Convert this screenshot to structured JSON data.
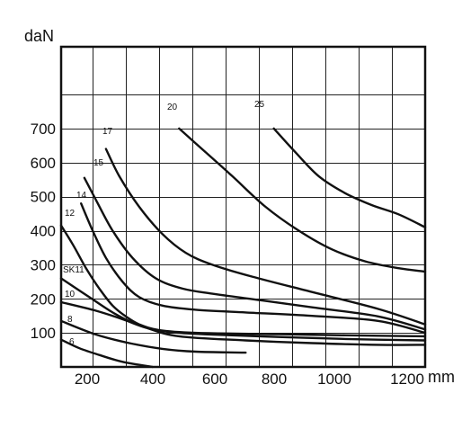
{
  "chart_data": {
    "type": "line",
    "ylabel": "daN",
    "xlabel": "mm",
    "xlim": [
      145,
      1240
    ],
    "ylim": [
      0,
      940
    ],
    "x_ticks": [
      {
        "value": 200,
        "label": "200"
      },
      {
        "value": 400,
        "label": "400"
      },
      {
        "value": 600,
        "label": "600"
      },
      {
        "value": 800,
        "label": "800"
      },
      {
        "value": 1000,
        "label": "1000"
      },
      {
        "value": 1200,
        "label": "1200"
      }
    ],
    "y_ticks": [
      {
        "value": 100,
        "label": "100"
      },
      {
        "value": 200,
        "label": "200"
      },
      {
        "value": 300,
        "label": "300"
      },
      {
        "value": 400,
        "label": "400"
      },
      {
        "value": 500,
        "label": "500"
      },
      {
        "value": 600,
        "label": "600"
      },
      {
        "value": 700,
        "label": "700"
      }
    ],
    "grid": true,
    "series": [
      {
        "name": "6",
        "points": [
          [
            145,
            80
          ],
          [
            200,
            55
          ],
          [
            260,
            35
          ],
          [
            330,
            15
          ],
          [
            420,
            0
          ]
        ]
      },
      {
        "name": "8",
        "points": [
          [
            145,
            135
          ],
          [
            250,
            95
          ],
          [
            350,
            70
          ],
          [
            450,
            53
          ],
          [
            550,
            45
          ],
          [
            700,
            42
          ]
        ]
      },
      {
        "name": "10",
        "points": [
          [
            145,
            190
          ],
          [
            250,
            165
          ],
          [
            330,
            140
          ],
          [
            400,
            115
          ],
          [
            500,
            90
          ],
          [
            700,
            78
          ],
          [
            900,
            70
          ],
          [
            1100,
            65
          ],
          [
            1240,
            65
          ]
        ]
      },
      {
        "name": "SK11",
        "points": [
          [
            145,
            260
          ],
          [
            230,
            205
          ],
          [
            300,
            160
          ],
          [
            360,
            130
          ],
          [
            420,
            110
          ],
          [
            500,
            100
          ],
          [
            600,
            95
          ],
          [
            800,
            88
          ],
          [
            1000,
            82
          ],
          [
            1240,
            78
          ]
        ]
      },
      {
        "name": "12",
        "points": [
          [
            145,
            415
          ],
          [
            180,
            360
          ],
          [
            220,
            290
          ],
          [
            260,
            230
          ],
          [
            300,
            180
          ],
          [
            340,
            148
          ],
          [
            380,
            125
          ],
          [
            440,
            108
          ],
          [
            550,
            100
          ],
          [
            800,
            96
          ],
          [
            1000,
            93
          ],
          [
            1240,
            90
          ]
        ]
      },
      {
        "name": "14",
        "points": [
          [
            205,
            480
          ],
          [
            240,
            400
          ],
          [
            280,
            320
          ],
          [
            330,
            250
          ],
          [
            380,
            205
          ],
          [
            450,
            180
          ],
          [
            550,
            168
          ],
          [
            700,
            160
          ],
          [
            900,
            150
          ],
          [
            1100,
            135
          ],
          [
            1240,
            100
          ]
        ]
      },
      {
        "name": "15",
        "points": [
          [
            215,
            555
          ],
          [
            250,
            490
          ],
          [
            300,
            400
          ],
          [
            360,
            320
          ],
          [
            430,
            260
          ],
          [
            510,
            230
          ],
          [
            600,
            215
          ],
          [
            750,
            195
          ],
          [
            900,
            175
          ],
          [
            1100,
            148
          ],
          [
            1240,
            110
          ]
        ]
      },
      {
        "name": "17",
        "points": [
          [
            280,
            640
          ],
          [
            320,
            560
          ],
          [
            380,
            470
          ],
          [
            450,
            390
          ],
          [
            520,
            335
          ],
          [
            600,
            300
          ],
          [
            720,
            265
          ],
          [
            900,
            220
          ],
          [
            1100,
            170
          ],
          [
            1240,
            125
          ]
        ]
      },
      {
        "name": "20",
        "points": [
          [
            500,
            700
          ],
          [
            580,
            630
          ],
          [
            660,
            560
          ],
          [
            760,
            470
          ],
          [
            860,
            400
          ],
          [
            960,
            345
          ],
          [
            1060,
            310
          ],
          [
            1160,
            290
          ],
          [
            1240,
            280
          ]
        ]
      },
      {
        "name": "25",
        "points": [
          [
            785,
            700
          ],
          [
            850,
            630
          ],
          [
            920,
            560
          ],
          [
            1000,
            510
          ],
          [
            1080,
            475
          ],
          [
            1160,
            448
          ],
          [
            1240,
            410
          ]
        ]
      }
    ]
  }
}
